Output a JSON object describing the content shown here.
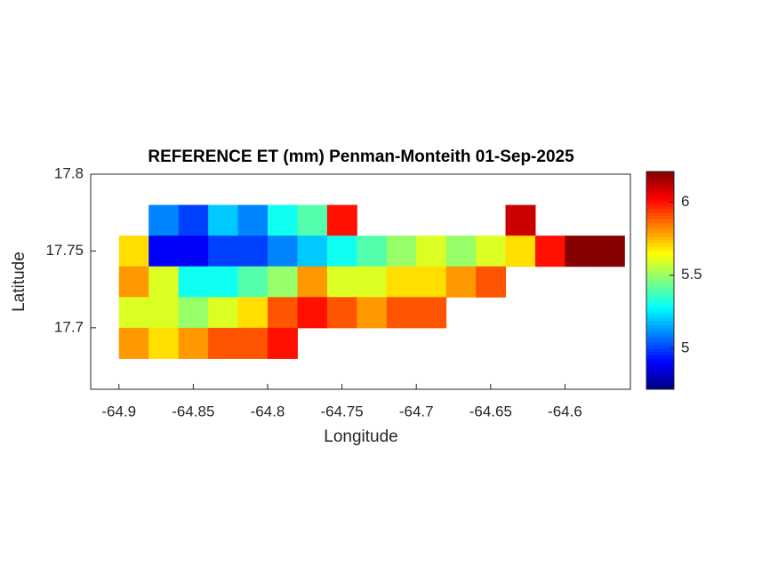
{
  "chart_data": {
    "type": "heatmap",
    "title": "REFERENCE ET (mm) Penman-Monteith 01-Sep-2025",
    "x_label": "Longitude",
    "y_label": "Latitude",
    "colormap": "jet",
    "x": [
      -64.89,
      -64.87,
      -64.85,
      -64.83,
      -64.81,
      -64.79,
      -64.77,
      -64.75,
      -64.73,
      -64.71,
      -64.69,
      -64.67,
      -64.65,
      -64.63,
      -64.61,
      -64.59,
      -64.57
    ],
    "y": [
      17.77,
      17.75,
      17.73,
      17.71,
      17.69
    ],
    "values": [
      [
        null,
        5.1,
        5.0,
        5.2,
        5.1,
        5.3,
        5.4,
        6.0,
        null,
        null,
        null,
        null,
        null,
        6.1,
        null,
        null,
        null
      ],
      [
        5.7,
        4.9,
        4.9,
        5.0,
        5.0,
        5.1,
        5.2,
        5.3,
        5.4,
        5.5,
        5.6,
        5.5,
        5.6,
        5.7,
        6.0,
        6.2,
        6.2
      ],
      [
        5.8,
        5.6,
        5.3,
        5.3,
        5.4,
        5.5,
        5.8,
        5.6,
        5.6,
        5.7,
        5.7,
        5.8,
        5.9,
        null,
        null,
        null,
        null
      ],
      [
        5.6,
        5.6,
        5.5,
        5.6,
        5.7,
        5.9,
        6.0,
        5.9,
        5.8,
        5.9,
        5.9,
        null,
        null,
        null,
        null,
        null,
        null
      ],
      [
        5.8,
        5.7,
        5.8,
        5.9,
        5.9,
        6.0,
        null,
        null,
        null,
        null,
        null,
        null,
        null,
        null,
        null,
        null,
        null
      ]
    ],
    "xlim": [
      -64.919,
      -64.556
    ],
    "ylim": [
      17.66,
      17.8
    ],
    "xticks": [
      -64.9,
      -64.85,
      -64.8,
      -64.75,
      -64.7,
      -64.65,
      -64.6
    ],
    "yticks": [
      17.7,
      17.75,
      17.8
    ],
    "clim": [
      4.72,
      6.21
    ],
    "cticks": [
      5,
      5.5,
      6
    ]
  }
}
